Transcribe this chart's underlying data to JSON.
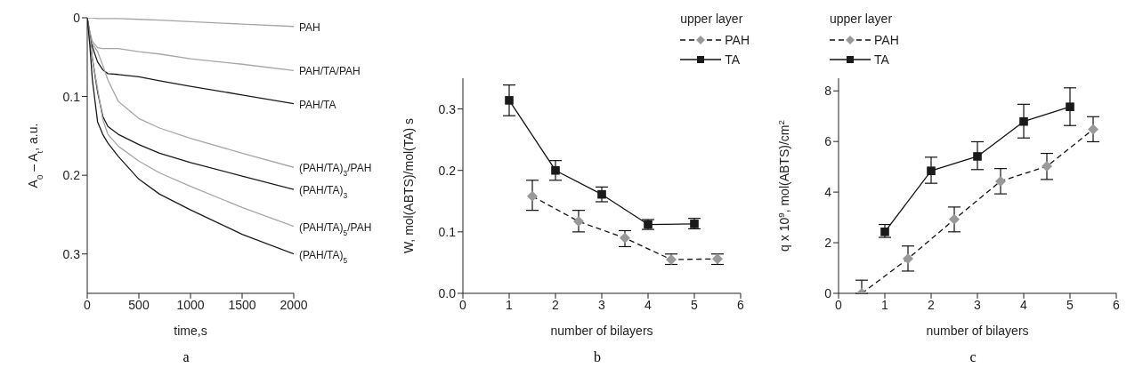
{
  "chart_data": [
    {
      "type": "line",
      "xlabel": "time,s",
      "ylabel": "A$_{0}$ – A$_{t}$, a.u.",
      "annotations": [
        "a"
      ],
      "xlim": [
        0,
        2000
      ],
      "xticks": [
        0,
        500,
        1000,
        1500,
        2000
      ],
      "ylim": [
        0.35,
        0
      ],
      "yticks": [
        0,
        0.1,
        0.2,
        0.3
      ],
      "marker": "none",
      "line_style": "solid",
      "x": [
        0,
        25,
        50,
        100,
        150,
        200,
        300,
        500,
        700,
        1000,
        1500,
        2000
      ],
      "series": [
        {
          "name": "PAH",
          "color": "#a6a6a6",
          "values": [
            0,
            0,
            0,
            0.001,
            0.001,
            0.001,
            0.001,
            0.002,
            0.003,
            0.005,
            0.008,
            0.011
          ]
        },
        {
          "name": "PAH/TA/PAH",
          "color": "#a6a6a6",
          "values": [
            0,
            0.018,
            0.03,
            0.038,
            0.039,
            0.039,
            0.039,
            0.043,
            0.046,
            0.052,
            0.059,
            0.067
          ]
        },
        {
          "name": "PAH/TA",
          "color": "#1a1a1a",
          "values": [
            0,
            0.02,
            0.037,
            0.056,
            0.066,
            0.071,
            0.072,
            0.075,
            0.08,
            0.087,
            0.098,
            0.109
          ]
        },
        {
          "name": "(PAH/TA)$_{3}$/PAH",
          "color": "#a6a6a6",
          "values": [
            0,
            0.018,
            0.033,
            0.043,
            0.06,
            0.079,
            0.106,
            0.128,
            0.14,
            0.153,
            0.172,
            0.19
          ]
        },
        {
          "name": "(PAH/TA)$_{3}$",
          "color": "#1a1a1a",
          "values": [
            0,
            0.025,
            0.052,
            0.094,
            0.125,
            0.138,
            0.148,
            0.161,
            0.172,
            0.184,
            0.201,
            0.218
          ]
        },
        {
          "name": "(PAH/TA)$_{5}$/PAH",
          "color": "#a6a6a6",
          "values": [
            0,
            0.025,
            0.052,
            0.09,
            0.129,
            0.148,
            0.163,
            0.182,
            0.197,
            0.214,
            0.241,
            0.265
          ]
        },
        {
          "name": "(PAH/TA)$_{5}$",
          "color": "#1a1a1a",
          "values": [
            0,
            0.035,
            0.079,
            0.132,
            0.148,
            0.159,
            0.176,
            0.205,
            0.224,
            0.244,
            0.275,
            0.3
          ]
        }
      ]
    },
    {
      "type": "line",
      "xlabel": "number of  bilayers",
      "ylabel": "W, mol(ABTS)/mol(TA) s",
      "legend_title": "upper layer",
      "legend": "top right",
      "annotations": [
        "b"
      ],
      "xlim": [
        0,
        6
      ],
      "xticks": [
        0,
        1,
        2,
        3,
        4,
        5,
        6
      ],
      "ylim": [
        0,
        0.35
      ],
      "yticks": [
        {
          "value": 0,
          "label": "0.0"
        },
        {
          "value": 0.1,
          "label": "0.1"
        },
        {
          "value": 0.2,
          "label": "0.2"
        },
        {
          "value": 0.3,
          "label": "0.3"
        }
      ],
      "series": [
        {
          "name": "PAH",
          "color": "#999999",
          "marker": "diamond",
          "line_style": "dashed",
          "x": [
            1.5,
            2.5,
            3.5,
            4.5,
            5.5
          ],
          "values": [
            0.158,
            0.117,
            0.09,
            0.055,
            0.056
          ],
          "errors": [
            [
              0.135,
              0.184
            ],
            [
              0.1,
              0.135
            ],
            [
              0.076,
              0.102
            ],
            [
              0.047,
              0.064
            ],
            [
              0.047,
              0.064
            ]
          ]
        },
        {
          "name": "TA",
          "color": "#1a1a1a",
          "marker": "square",
          "line_style": "solid",
          "x": [
            1,
            2,
            3,
            4,
            5
          ],
          "values": [
            0.314,
            0.2,
            0.161,
            0.112,
            0.113
          ],
          "errors": [
            [
              0.289,
              0.339
            ],
            [
              0.184,
              0.216
            ],
            [
              0.149,
              0.173
            ],
            [
              0.104,
              0.12
            ],
            [
              0.105,
              0.122
            ]
          ]
        }
      ]
    },
    {
      "type": "line",
      "xlabel": "number of bilayers",
      "ylabel": "q x 10$^{9}$, mol(ABTS)/cm$^{2}$",
      "legend_title": "upper layer",
      "legend": "top left",
      "annotations": [
        "c"
      ],
      "xlim": [
        0,
        6
      ],
      "xticks": [
        0,
        1,
        2,
        3,
        4,
        5,
        6
      ],
      "ylim": [
        0,
        8.5
      ],
      "yticks": [
        0,
        2,
        4,
        6,
        8
      ],
      "series": [
        {
          "name": "PAH",
          "color": "#999999",
          "marker": "diamond",
          "line_style": "dashed",
          "x": [
            0.5,
            1.5,
            2.5,
            3.5,
            4.5,
            5.5
          ],
          "values": [
            0,
            1.37,
            2.92,
            4.43,
            5.02,
            6.48
          ],
          "errors": [
            [
              0,
              0.52
            ],
            [
              0.88,
              1.87
            ],
            [
              2.43,
              3.41
            ],
            [
              3.93,
              4.93
            ],
            [
              4.5,
              5.53
            ],
            [
              5.99,
              6.98
            ]
          ]
        },
        {
          "name": "TA",
          "color": "#1a1a1a",
          "marker": "square",
          "line_style": "solid",
          "x": [
            1,
            2,
            3,
            4,
            5
          ],
          "values": [
            2.43,
            4.84,
            5.41,
            6.79,
            7.37
          ],
          "errors": [
            [
              2.21,
              2.72
            ],
            [
              4.35,
              5.38
            ],
            [
              4.89,
              5.99
            ],
            [
              6.14,
              7.47
            ],
            [
              6.63,
              8.12
            ]
          ]
        }
      ]
    }
  ]
}
